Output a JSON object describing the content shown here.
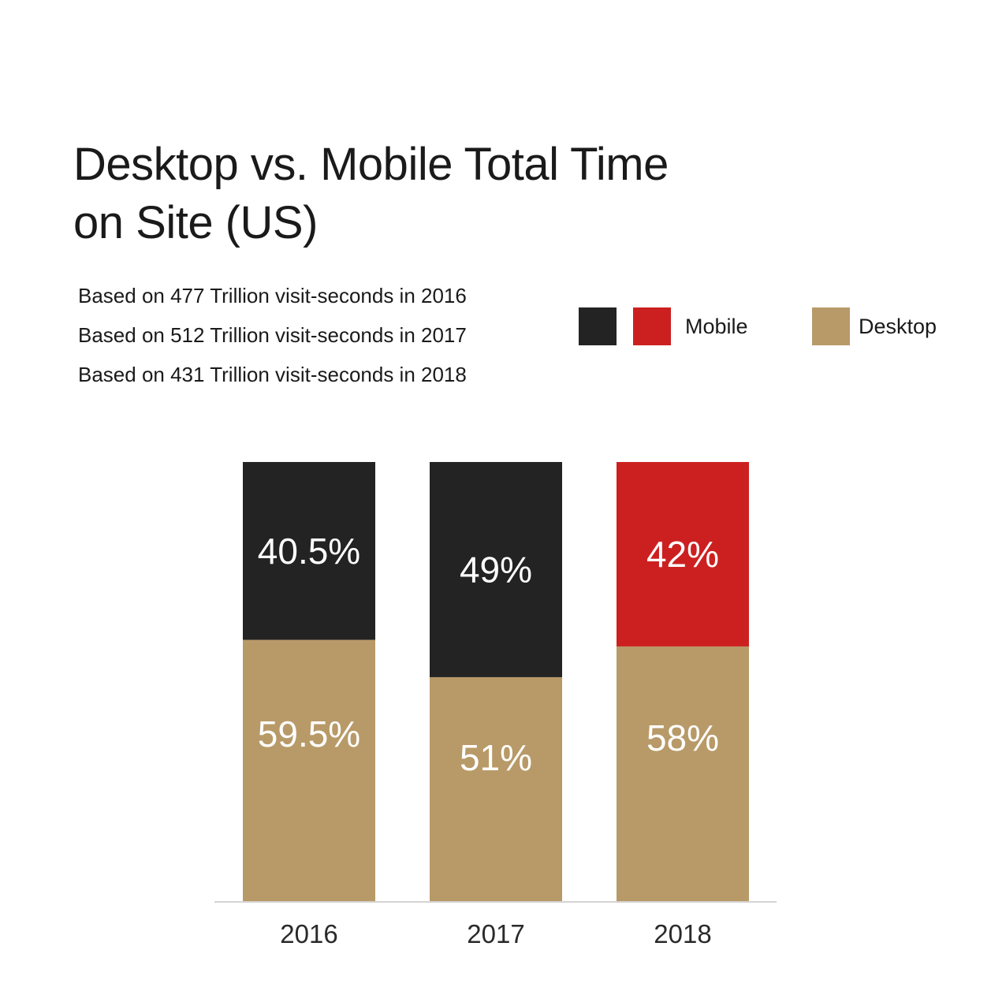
{
  "title_line1": "Desktop vs. Mobile Total Time",
  "title_line2": "on Site (US)",
  "notes": [
    "Based on 477 Trillion visit-seconds in 2016",
    "Based on 512 Trillion visit-seconds in 2017",
    "Based on 431 Trillion visit-seconds in 2018"
  ],
  "legend": {
    "mobile_label": "Mobile",
    "desktop_label": "Desktop"
  },
  "colors": {
    "mobile_2016_2017": "#232323",
    "mobile_2018": "#cc2020",
    "desktop": "#b89a68",
    "axis": "#d4d4d4"
  },
  "chart_data": {
    "type": "bar",
    "stacked": true,
    "categories": [
      "2016",
      "2017",
      "2018"
    ],
    "series": [
      {
        "name": "Desktop",
        "values": [
          59.5,
          51,
          58
        ],
        "labels": [
          "59.5%",
          "51%",
          "58%"
        ]
      },
      {
        "name": "Mobile",
        "values": [
          40.5,
          49,
          42
        ],
        "labels": [
          "40.5%",
          "49%",
          "42%"
        ]
      }
    ],
    "ylim": [
      0,
      100
    ],
    "grid": false,
    "legend_position": "top-right"
  }
}
